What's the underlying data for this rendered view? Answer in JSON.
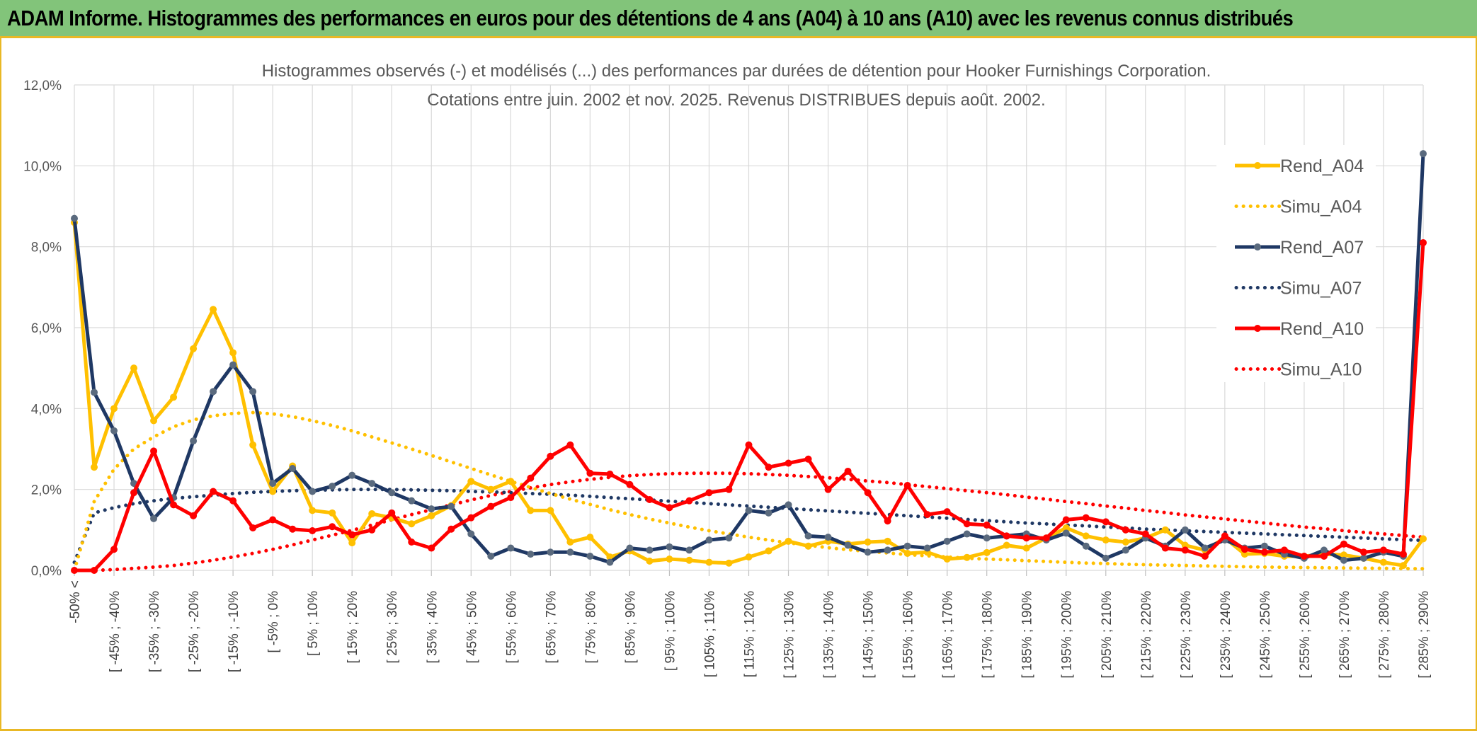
{
  "banner": {
    "title": "ADAM Informe. Histogrammes des performances en euros pour des détentions de 4 ans (A04) à 10 ans (A10) avec les revenus connus distribués"
  },
  "colors": {
    "banner_bg": "#82c47a",
    "banner_border": "#e9b825",
    "A04": "#ffc000",
    "A07": "#1f3864",
    "A07_markers": "#5a6a7e",
    "A10": "#ff0000",
    "grid": "#d9d9d9"
  },
  "chart_data": {
    "type": "line",
    "title": [
      "Histogrammes observés (-) et modélisés (...) des performances par durées de détention pour Hooker Furnishings Corporation.",
      "Cotations entre juin. 2002 et nov. 2025. Revenus DISTRIBUES depuis août. 2002."
    ],
    "xlabel": "",
    "ylabel": "",
    "ylim": [
      0,
      12
    ],
    "yticks": [
      "0,0%",
      "2,0%",
      "4,0%",
      "6,0%",
      "8,0%",
      "10,0%",
      "12,0%"
    ],
    "x_labels": [
      "-50% <",
      "[ -45% ; -40%",
      "[ -35% ; -30%",
      "[ -25% ; -20%",
      "[ -15% ; -10%",
      "[ -5% ; 0%",
      "[ 5% ; 10%",
      "[ 15% ; 20%",
      "[ 25% ; 30%",
      "[ 35% ; 40%",
      "[ 45% ; 50%",
      "[ 55% ; 60%",
      "[ 65% ; 70%",
      "[ 75% ; 80%",
      "[ 85% ; 90%",
      "[ 95% ; 100%",
      "[ 105% ; 110%",
      "[ 115% ; 120%",
      "[ 125% ; 130%",
      "[ 135% ; 140%",
      "[ 145% ; 150%",
      "[ 155% ; 160%",
      "[ 165% ; 170%",
      "[ 175% ; 180%",
      "[ 185% ; 190%",
      "[ 195% ; 200%",
      "[ 205% ; 210%",
      "[ 215% ; 220%",
      "[ 225% ; 230%",
      "[ 235% ; 240%",
      "[ 245% ; 250%",
      "[ 255% ; 260%",
      "[ 265% ; 270%",
      "[ 275% ; 280%",
      "[ 285% ; 290%"
    ],
    "grid": true,
    "legend_position": "right",
    "series": [
      {
        "name": "Rend_A04",
        "style": "solid",
        "values": [
          8.6,
          2.55,
          4.0,
          5.0,
          3.7,
          4.28,
          5.48,
          6.45,
          5.38,
          3.1,
          1.95,
          2.58,
          1.48,
          1.42,
          0.68,
          1.4,
          1.3,
          1.15,
          1.35,
          1.6,
          2.2,
          2.0,
          2.2,
          1.48,
          1.48,
          0.7,
          0.82,
          0.33,
          0.48,
          0.23,
          0.28,
          0.25,
          0.2,
          0.18,
          0.33,
          0.48,
          0.72,
          0.6,
          0.72,
          0.65,
          0.7,
          0.72,
          0.42,
          0.45,
          0.28,
          0.32,
          0.44,
          0.62,
          0.55,
          0.8,
          1.05,
          0.85,
          0.75,
          0.7,
          0.8,
          1.0,
          0.62,
          0.5,
          0.8,
          0.4,
          0.42,
          0.35,
          0.35,
          0.4,
          0.38,
          0.3,
          0.2,
          0.12,
          0.78
        ]
      },
      {
        "name": "Simu_A04",
        "style": "dotted",
        "values": [
          0.0,
          1.7,
          2.5,
          3.0,
          3.3,
          3.55,
          3.72,
          3.82,
          3.88,
          3.9,
          3.87,
          3.8,
          3.7,
          3.58,
          3.45,
          3.3,
          3.15,
          3.0,
          2.84,
          2.68,
          2.52,
          2.36,
          2.2,
          2.05,
          1.9,
          1.76,
          1.63,
          1.5,
          1.38,
          1.27,
          1.17,
          1.07,
          0.98,
          0.9,
          0.82,
          0.75,
          0.68,
          0.62,
          0.56,
          0.51,
          0.47,
          0.43,
          0.39,
          0.36,
          0.33,
          0.3,
          0.28,
          0.26,
          0.24,
          0.22,
          0.2,
          0.18,
          0.17,
          0.15,
          0.14,
          0.13,
          0.12,
          0.11,
          0.1,
          0.09,
          0.08,
          0.075,
          0.07,
          0.065,
          0.06,
          0.055,
          0.05,
          0.045,
          0.04
        ]
      },
      {
        "name": "Rend_A07",
        "style": "solid",
        "values": [
          8.7,
          4.4,
          3.45,
          2.15,
          1.28,
          1.8,
          3.2,
          4.42,
          5.08,
          4.42,
          2.15,
          2.52,
          1.95,
          2.08,
          2.35,
          2.15,
          1.92,
          1.72,
          1.52,
          1.58,
          0.9,
          0.35,
          0.55,
          0.4,
          0.45,
          0.45,
          0.35,
          0.2,
          0.55,
          0.5,
          0.58,
          0.5,
          0.75,
          0.8,
          1.48,
          1.42,
          1.62,
          0.85,
          0.82,
          0.62,
          0.45,
          0.5,
          0.6,
          0.55,
          0.72,
          0.9,
          0.8,
          0.85,
          0.9,
          0.75,
          0.92,
          0.6,
          0.3,
          0.5,
          0.8,
          0.6,
          1.0,
          0.55,
          0.75,
          0.55,
          0.6,
          0.4,
          0.3,
          0.5,
          0.25,
          0.3,
          0.45,
          0.35,
          10.3
        ]
      },
      {
        "name": "Simu_A07",
        "style": "dotted",
        "values": [
          0.2,
          1.42,
          1.55,
          1.65,
          1.72,
          1.78,
          1.82,
          1.86,
          1.9,
          1.93,
          1.95,
          1.97,
          1.98,
          1.99,
          2.0,
          2.0,
          2.0,
          1.99,
          1.98,
          1.97,
          1.95,
          1.94,
          1.92,
          1.9,
          1.88,
          1.86,
          1.83,
          1.8,
          1.77,
          1.74,
          1.71,
          1.68,
          1.65,
          1.62,
          1.59,
          1.56,
          1.53,
          1.5,
          1.47,
          1.44,
          1.41,
          1.38,
          1.35,
          1.32,
          1.29,
          1.26,
          1.23,
          1.2,
          1.17,
          1.15,
          1.12,
          1.1,
          1.07,
          1.05,
          1.02,
          1.0,
          0.98,
          0.96,
          0.94,
          0.92,
          0.9,
          0.88,
          0.86,
          0.84,
          0.82,
          0.8,
          0.78,
          0.76,
          0.74
        ]
      },
      {
        "name": "Rend_A10",
        "style": "solid",
        "values": [
          0.0,
          0.0,
          0.52,
          1.92,
          2.95,
          1.62,
          1.35,
          1.95,
          1.72,
          1.05,
          1.25,
          1.02,
          0.98,
          1.08,
          0.88,
          1.0,
          1.42,
          0.7,
          0.55,
          1.02,
          1.3,
          1.58,
          1.8,
          2.28,
          2.82,
          3.1,
          2.4,
          2.38,
          2.12,
          1.75,
          1.55,
          1.72,
          1.92,
          2.0,
          3.1,
          2.55,
          2.65,
          2.75,
          2.0,
          2.45,
          1.92,
          1.22,
          2.1,
          1.38,
          1.45,
          1.15,
          1.12,
          0.85,
          0.8,
          0.8,
          1.25,
          1.3,
          1.2,
          1.0,
          0.9,
          0.55,
          0.5,
          0.35,
          0.85,
          0.52,
          0.45,
          0.5,
          0.35,
          0.35,
          0.65,
          0.45,
          0.5,
          0.4,
          8.1
        ]
      },
      {
        "name": "Simu_A10",
        "style": "dotted",
        "values": [
          0.0,
          0.0,
          0.02,
          0.05,
          0.08,
          0.12,
          0.18,
          0.25,
          0.33,
          0.42,
          0.52,
          0.63,
          0.75,
          0.87,
          0.99,
          1.12,
          1.25,
          1.38,
          1.5,
          1.62,
          1.74,
          1.85,
          1.95,
          2.04,
          2.12,
          2.19,
          2.25,
          2.3,
          2.34,
          2.37,
          2.39,
          2.4,
          2.4,
          2.4,
          2.39,
          2.37,
          2.35,
          2.32,
          2.29,
          2.25,
          2.21,
          2.17,
          2.12,
          2.07,
          2.02,
          1.97,
          1.92,
          1.87,
          1.81,
          1.76,
          1.7,
          1.65,
          1.59,
          1.54,
          1.48,
          1.43,
          1.37,
          1.32,
          1.27,
          1.22,
          1.17,
          1.12,
          1.07,
          1.03,
          0.98,
          0.94,
          0.9,
          0.86,
          0.82
        ]
      }
    ]
  }
}
